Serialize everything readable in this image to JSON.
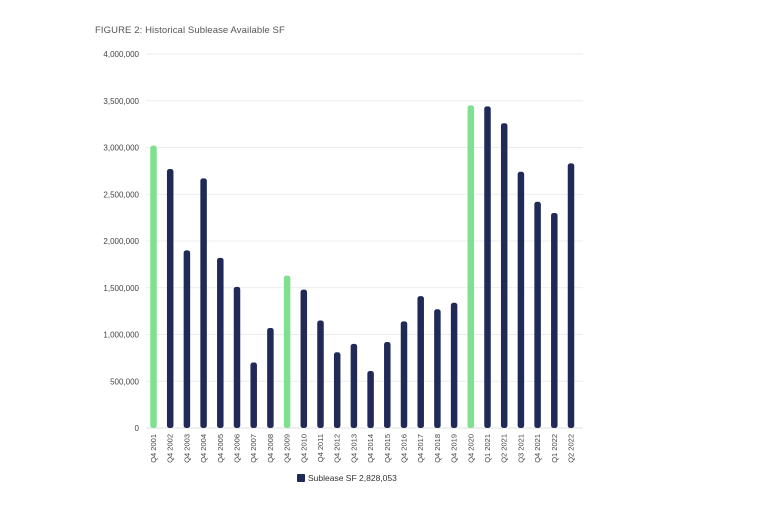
{
  "chart_data": {
    "type": "bar",
    "title": "FIGURE 2: Historical Sublease Available SF",
    "xlabel": "",
    "ylabel": "",
    "ylim": [
      0,
      4000000
    ],
    "yticks": [
      "4,000,000",
      "3,500,000",
      "3,000,000",
      "2,500,000",
      "2,000,000",
      "1,500,000",
      "1,000,000",
      "500,000",
      "0"
    ],
    "yticks_values": [
      4000000,
      3500000,
      3000000,
      2500000,
      2000000,
      1500000,
      1000000,
      500000,
      0
    ],
    "grid": true,
    "legend_position": "bottom",
    "categories": [
      "Q4 2001",
      "Q4 2002",
      "Q4 2003",
      "Q4 2004",
      "Q4 2005",
      "Q4 2006",
      "Q4 2007",
      "Q4 2008",
      "Q4 2009",
      "Q4 2010",
      "Q4 2011",
      "Q4 2012",
      "Q4 2013",
      "Q4 2014",
      "Q4 2015",
      "Q4 2016",
      "Q4 2017",
      "Q4 2018",
      "Q4 2019",
      "Q4 2020",
      "Q1 2021",
      "Q2 2021",
      "Q3 2021",
      "Q4 2021",
      "Q1 2022",
      "Q2 2022"
    ],
    "series": [
      {
        "name": "Sublease SF 2,828,053",
        "values": [
          3020000,
          2770000,
          1900000,
          2670000,
          1820000,
          1510000,
          700000,
          1070000,
          1630000,
          1480000,
          1150000,
          810000,
          900000,
          610000,
          920000,
          1140000,
          1410000,
          1270000,
          1340000,
          3450000,
          3440000,
          3260000,
          2740000,
          2420000,
          2300000,
          2830000
        ]
      }
    ],
    "highlight_categories": [
      "Q4 2001",
      "Q4 2009",
      "Q4 2020"
    ],
    "colors": {
      "bar": "#1f2a56",
      "highlight": "#7fe08f",
      "grid": "#e6e6e6",
      "legend_swatch": "#1f2a56"
    }
  }
}
